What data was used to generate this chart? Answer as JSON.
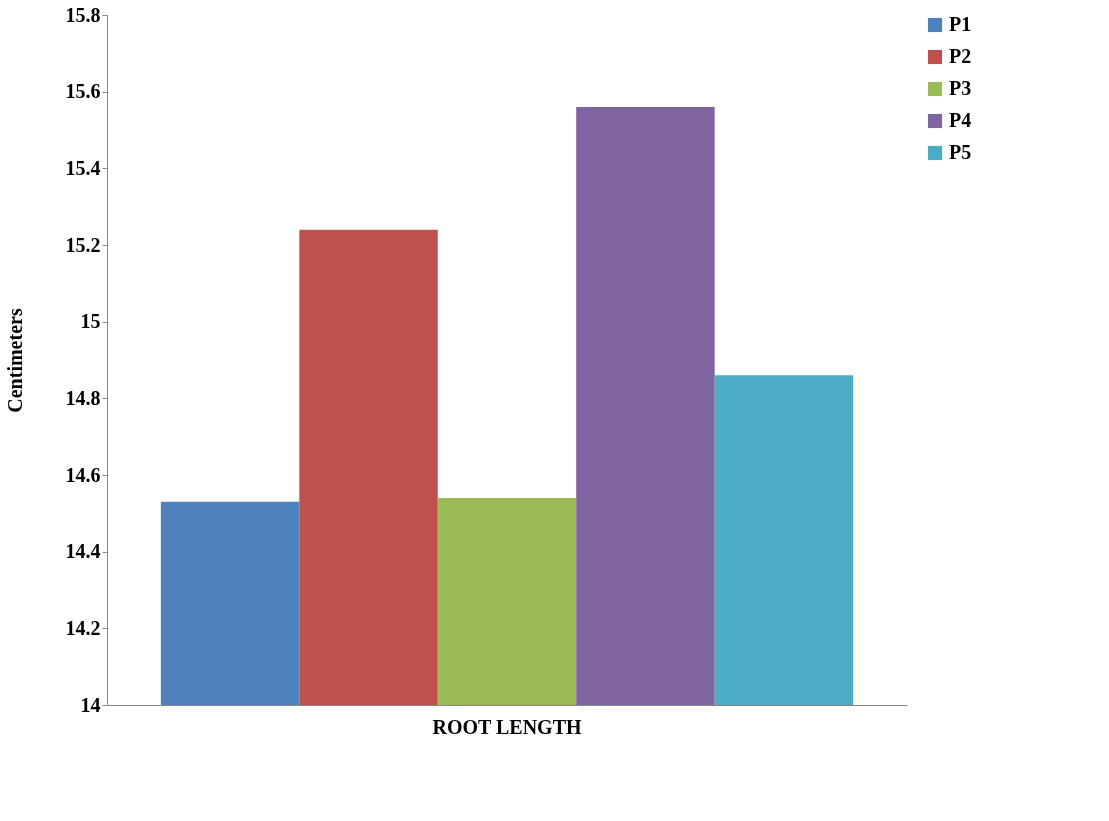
{
  "chart_data": {
    "type": "bar",
    "categories": [
      "ROOT LENGTH"
    ],
    "ylabel": "Centimeters",
    "series": [
      {
        "name": "P1",
        "color": "#4f81bd",
        "values": [
          14.53
        ]
      },
      {
        "name": "P2",
        "color": "#c0504d",
        "values": [
          15.24
        ]
      },
      {
        "name": "P3",
        "color": "#9bbb59",
        "values": [
          14.54
        ]
      },
      {
        "name": "P4",
        "color": "#8064a2",
        "values": [
          15.56
        ]
      },
      {
        "name": "P5",
        "color": "#4bacc6",
        "values": [
          14.86
        ]
      }
    ],
    "ylim": [
      14,
      15.8
    ],
    "yticks": [
      14,
      14.2,
      14.4,
      14.6,
      14.8,
      15,
      15.2,
      15.4,
      15.6,
      15.8
    ],
    "grid": false,
    "legend": "right"
  }
}
